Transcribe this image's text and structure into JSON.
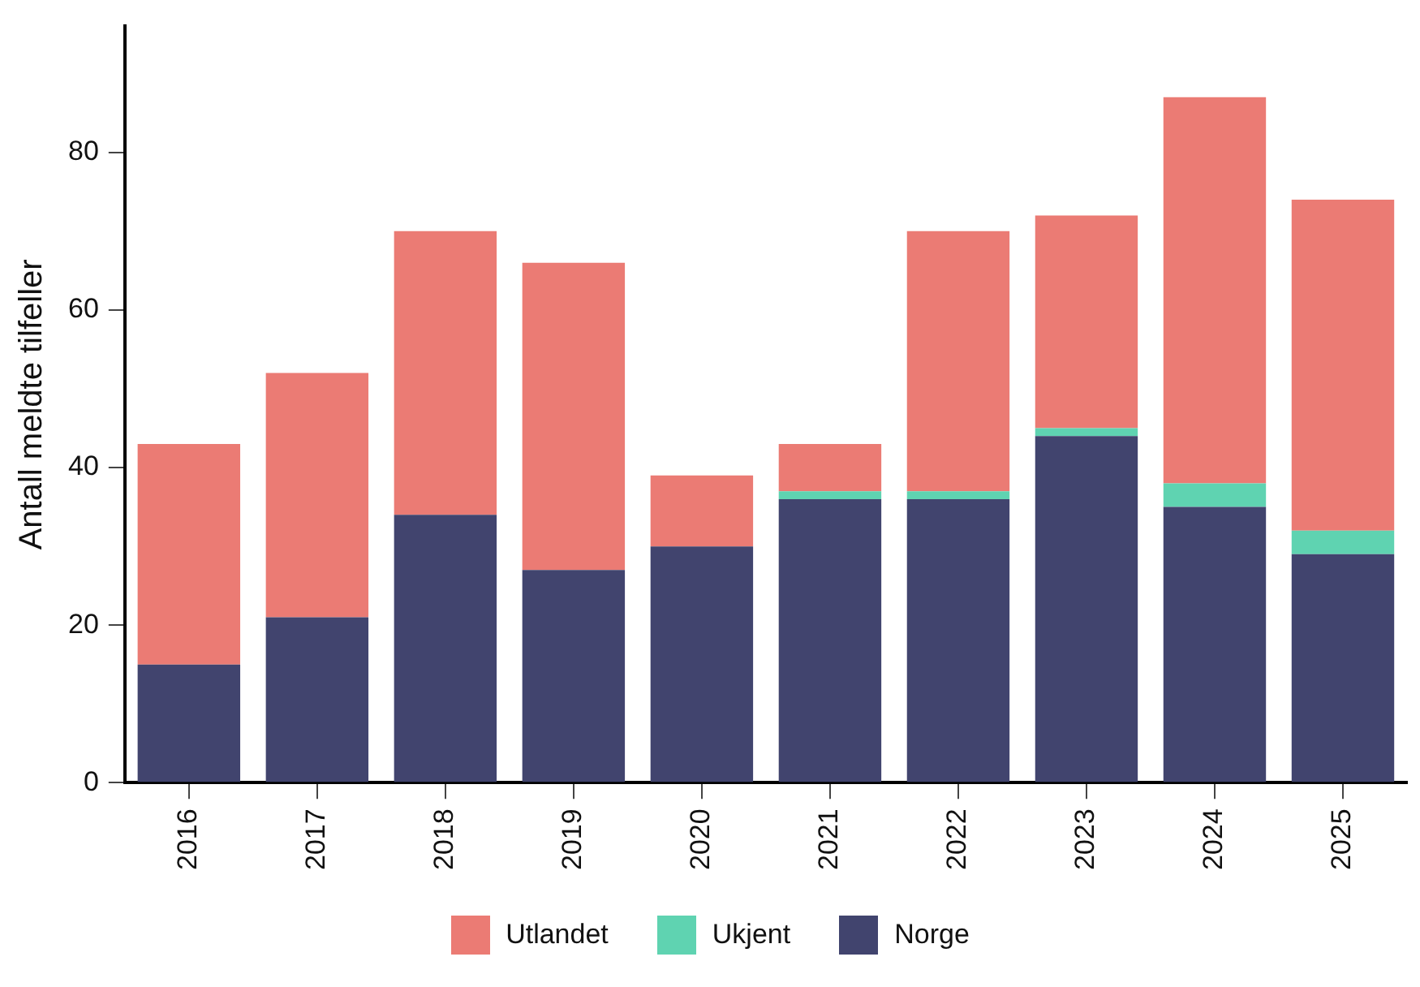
{
  "chart_data": {
    "type": "bar",
    "ylabel": "Antall meldte tilfeller",
    "categories": [
      "2016",
      "2017",
      "2018",
      "2019",
      "2020",
      "2021",
      "2022",
      "2023",
      "2024",
      "2025"
    ],
    "series": [
      {
        "name": "Norge",
        "color": "#41446e",
        "values": [
          15,
          21,
          34,
          27,
          30,
          36,
          36,
          44,
          35,
          29
        ]
      },
      {
        "name": "Ukjent",
        "color": "#5fd3b1",
        "values": [
          0,
          0,
          0,
          0,
          0,
          1,
          1,
          1,
          3,
          3
        ]
      },
      {
        "name": "Utlandet",
        "color": "#eb7b74",
        "values": [
          28,
          31,
          36,
          39,
          9,
          6,
          33,
          27,
          49,
          42
        ]
      }
    ],
    "stacked": true,
    "ylim": [
      0,
      96
    ],
    "yticks": [
      0,
      20,
      40,
      60,
      80
    ],
    "grid": false,
    "legend": "bottom"
  }
}
